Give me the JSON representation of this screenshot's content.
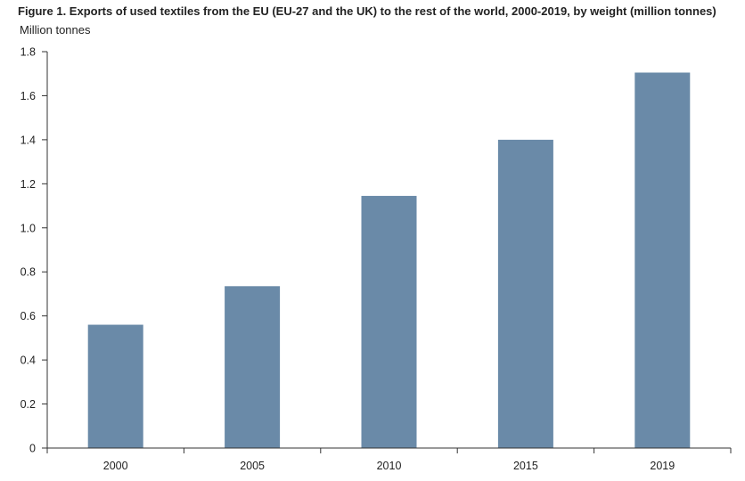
{
  "chart_data": {
    "type": "bar",
    "title": "Figure 1. Exports of used textiles from the EU (EU-27 and the UK) to the rest of the world, 2000-2019, by weight (million tonnes)",
    "ylabel": "Million tonnes",
    "xlabel": "",
    "categories": [
      "2000",
      "2005",
      "2010",
      "2015",
      "2019"
    ],
    "values": [
      0.56,
      0.735,
      1.145,
      1.4,
      1.705
    ],
    "ylim": [
      0,
      1.8
    ],
    "yticks": [
      0,
      0.2,
      0.4,
      0.6,
      0.8,
      1.0,
      1.2,
      1.4,
      1.6,
      1.8
    ],
    "ytick_labels": [
      "0",
      "0.2",
      "0.4",
      "0.6",
      "0.8",
      "1.0",
      "1.2",
      "1.4",
      "1.6",
      "1.8"
    ],
    "grid": false,
    "legend": "none",
    "bar_color": "#6a8aa8"
  }
}
